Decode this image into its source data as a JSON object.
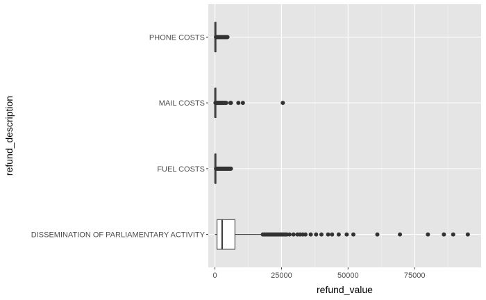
{
  "chart_data": {
    "type": "boxplot",
    "orientation": "horizontal",
    "xlabel": "refund_value",
    "ylabel": "refund_description",
    "xlim": [
      -2500,
      100000
    ],
    "x_ticks": [
      0,
      25000,
      50000,
      75000
    ],
    "x_tick_labels": [
      "0",
      "25000",
      "50000",
      "75000"
    ],
    "grid": true,
    "legend": "none",
    "colors": {
      "panel": "#e5e5e5",
      "grid_major": "#ffffff",
      "box_fill": "#ffffff",
      "stroke": "#333333",
      "text": "#4d4d4d"
    },
    "categories": [
      "PHONE COSTS",
      "MAIL COSTS",
      "FUEL COSTS",
      "DISSEMINATION OF PARLIAMENTARY ACTIVITY"
    ],
    "boxes": [
      {
        "category": "PHONE COSTS",
        "lower_whisker": 0,
        "q1": 20,
        "median": 60,
        "q3": 150,
        "upper_whisker": 360,
        "outliers": [
          380,
          500,
          700,
          900,
          1100,
          1300,
          1500,
          1700,
          1900,
          2100,
          2300,
          2500,
          2700,
          2900,
          3100,
          3300,
          3500,
          3700,
          3900,
          4100,
          4300,
          4500,
          4700
        ]
      },
      {
        "category": "MAIL COSTS",
        "lower_whisker": 0,
        "q1": 5,
        "median": 20,
        "q3": 60,
        "upper_whisker": 140,
        "outliers": [
          200,
          400,
          600,
          800,
          1000,
          1200,
          1400,
          1600,
          1800,
          2000,
          2200,
          2400,
          2600,
          2800,
          3000,
          3300,
          3600,
          3900,
          4200,
          5800,
          6000,
          8800,
          10500,
          25500
        ]
      },
      {
        "category": "FUEL COSTS",
        "lower_whisker": 0,
        "q1": 20,
        "median": 60,
        "q3": 150,
        "upper_whisker": 340,
        "outliers": [
          400,
          600,
          800,
          1000,
          1200,
          1400,
          1600,
          1800,
          2000,
          2200,
          2400,
          2600,
          2800,
          3000,
          3200,
          3400,
          3600,
          3800,
          4000,
          4200,
          4400,
          4600,
          4800,
          5000,
          5200,
          5400,
          5600,
          5800,
          6000
        ]
      },
      {
        "category": "DISSEMINATION OF PARLIAMENTARY ACTIVITY",
        "lower_whisker": 0,
        "q1": 800,
        "median": 2700,
        "q3": 7500,
        "upper_whisker": 17500,
        "outliers": [
          18000,
          18500,
          19000,
          19500,
          20000,
          20500,
          21000,
          21500,
          22000,
          22500,
          23000,
          23500,
          24000,
          24500,
          25000,
          25500,
          26000,
          26500,
          27000,
          28000,
          29500,
          31000,
          32000,
          33000,
          34000,
          36000,
          38000,
          40000,
          42500,
          44000,
          46500,
          49500,
          52000,
          61000,
          69500,
          80000,
          86000,
          89500,
          95000
        ]
      }
    ]
  }
}
